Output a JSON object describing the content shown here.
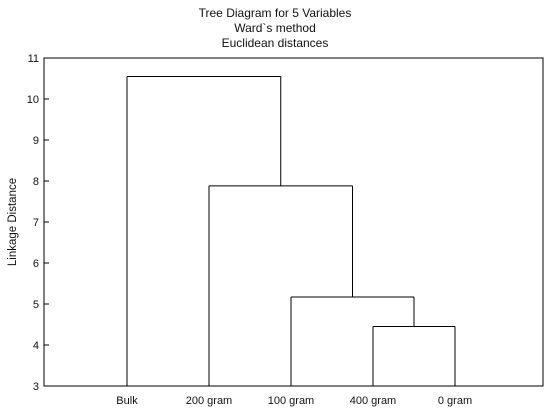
{
  "chart_data": {
    "type": "dendrogram",
    "title_lines": [
      "Tree Diagram for 5 Variables",
      "Ward`s method",
      "Euclidean distances"
    ],
    "ylabel": "Linkage Distance",
    "xlabel": "",
    "ylim": [
      3,
      11
    ],
    "yticks": [
      "3",
      "4",
      "5",
      "6",
      "7",
      "8",
      "9",
      "10",
      "11"
    ],
    "leaves": [
      "Bulk",
      "200 gram",
      "100 gram",
      "400 gram",
      "0 gram"
    ],
    "merges": [
      {
        "members": [
          "400 gram",
          "0 gram"
        ],
        "distance": 4.45
      },
      {
        "members": [
          "100 gram",
          "400 gram",
          "0 gram"
        ],
        "distance": 5.17
      },
      {
        "members": [
          "200 gram",
          "100 gram",
          "400 gram",
          "0 gram"
        ],
        "distance": 7.88
      },
      {
        "members": [
          "Bulk",
          "200 gram",
          "100 gram",
          "400 gram",
          "0 gram"
        ],
        "distance": 10.55
      }
    ],
    "grid": false,
    "legend": "none"
  }
}
